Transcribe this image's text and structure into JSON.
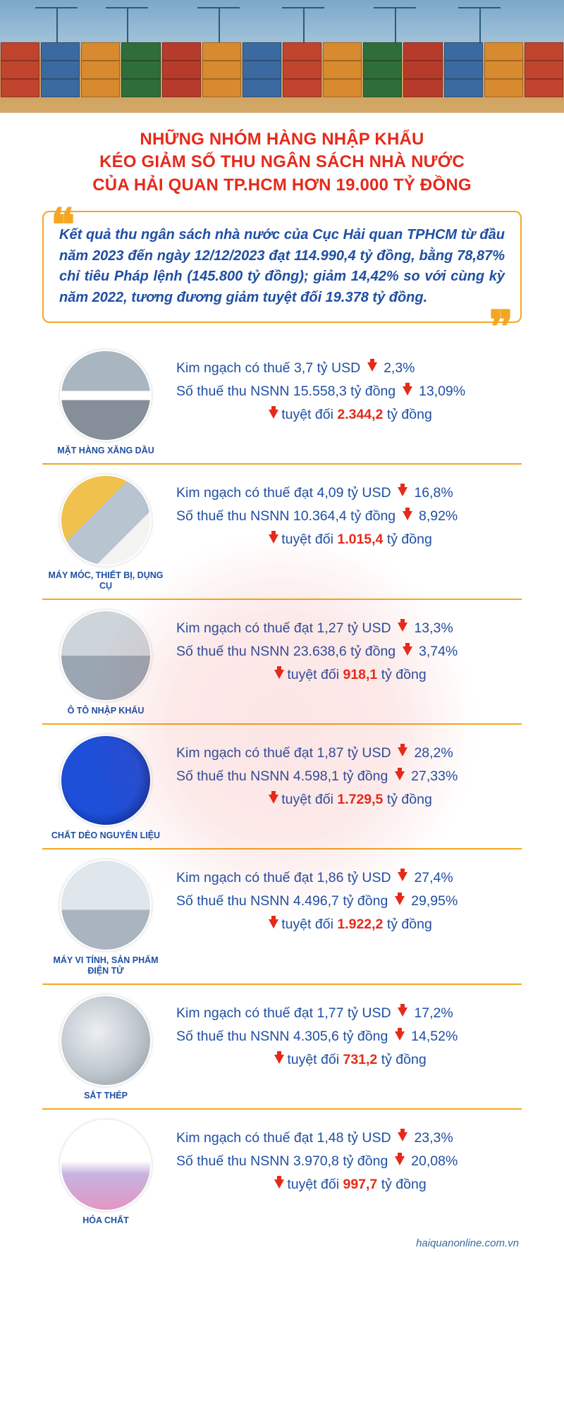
{
  "colors": {
    "accent_red": "#e52a1a",
    "accent_blue": "#1f4fa3",
    "accent_yellow": "#f4a623"
  },
  "title_lines": [
    "NHỮNG NHÓM HÀNG NHẬP KHẨU",
    "KÉO GIẢM SỐ THU NGÂN SÁCH NHÀ NƯỚC",
    "CỦA HẢI QUAN TP.HCM HƠN 19.000 TỶ ĐỒNG"
  ],
  "quote": "Kết quả thu ngân sách nhà nước của Cục Hải quan TPHCM từ đầu năm 2023 đến ngày 12/12/2023 đạt 114.990,4 tỷ đồng, bằng 78,87% chỉ tiêu Pháp lệnh (145.800 tỷ đồng); giảm 14,42% so với cùng kỳ năm 2022, tương đương giảm tuyệt đối 19.378 tỷ đồng.",
  "labels": {
    "line1_prefix_a": "Kim ngạch có thuế ",
    "line1_prefix_b": "Kim ngạch có thuế đạt ",
    "line1_unit": " tỷ USD",
    "line2_prefix": "Số thuế thu NSNN ",
    "line2_unit": " tỷ đồng",
    "line3_prefix": "tuyệt đối ",
    "line3_suffix": " tỷ đồng"
  },
  "items": [
    {
      "category": "MẶT HÀNG XĂNG DẦU",
      "img_class": "img-petrol",
      "line1_prefix_key": "line1_prefix_a",
      "kim_ngach": "3,7",
      "kim_ngach_pct": "2,3%",
      "thue": "15.558,3",
      "thue_pct": "13,09%",
      "abs": "2.344,2"
    },
    {
      "category": "MÁY MÓC, THIẾT BỊ, DỤNG CỤ",
      "img_class": "img-machine",
      "line1_prefix_key": "line1_prefix_b",
      "kim_ngach": "4,09",
      "kim_ngach_pct": "16,8%",
      "thue": "10.364,4",
      "thue_pct": "8,92%",
      "abs": "1.015,4"
    },
    {
      "category": "Ô TÔ NHẬP KHẨU",
      "img_class": "img-car",
      "line1_prefix_key": "line1_prefix_b",
      "kim_ngach": "1,27",
      "kim_ngach_pct": "13,3%",
      "thue": "23.638,6",
      "thue_pct": "3,74%",
      "abs": "918,1"
    },
    {
      "category": "CHẤT DẺO NGUYÊN LIỆU",
      "img_class": "img-plastic",
      "line1_prefix_key": "line1_prefix_b",
      "kim_ngach": "1,87",
      "kim_ngach_pct": "28,2%",
      "thue": "4.598,1",
      "thue_pct": "27,33%",
      "abs": "1.729,5"
    },
    {
      "category": "MÁY VI TÍNH, SẢN PHẨM ĐIỆN TỬ",
      "img_class": "img-pc",
      "line1_prefix_key": "line1_prefix_b",
      "kim_ngach": "1,86",
      "kim_ngach_pct": "27,4%",
      "thue": "4.496,7",
      "thue_pct": "29,95%",
      "abs": "1.922,2"
    },
    {
      "category": "SẮT THÉP",
      "img_class": "img-steel",
      "line1_prefix_key": "line1_prefix_b",
      "kim_ngach": "1,77",
      "kim_ngach_pct": "17,2%",
      "thue": "4.305,6",
      "thue_pct": "14,52%",
      "abs": "731,2"
    },
    {
      "category": "HÓA CHẤT",
      "img_class": "img-chem",
      "line1_prefix_key": "line1_prefix_b",
      "kim_ngach": "1,48",
      "kim_ngach_pct": "23,3%",
      "thue": "3.970,8",
      "thue_pct": "20,08%",
      "abs": "997,7"
    }
  ],
  "footer": "haiquanonline.com.vn",
  "hero_container_colors": [
    "#c0442e",
    "#3b6aa0",
    "#d88a2e",
    "#2f6e3a",
    "#b73b2a",
    "#d88a2e",
    "#3b6aa0",
    "#c0442e",
    "#d88a2e",
    "#2f6e3a",
    "#b73b2a",
    "#3b6aa0",
    "#d88a2e",
    "#c0442e"
  ]
}
